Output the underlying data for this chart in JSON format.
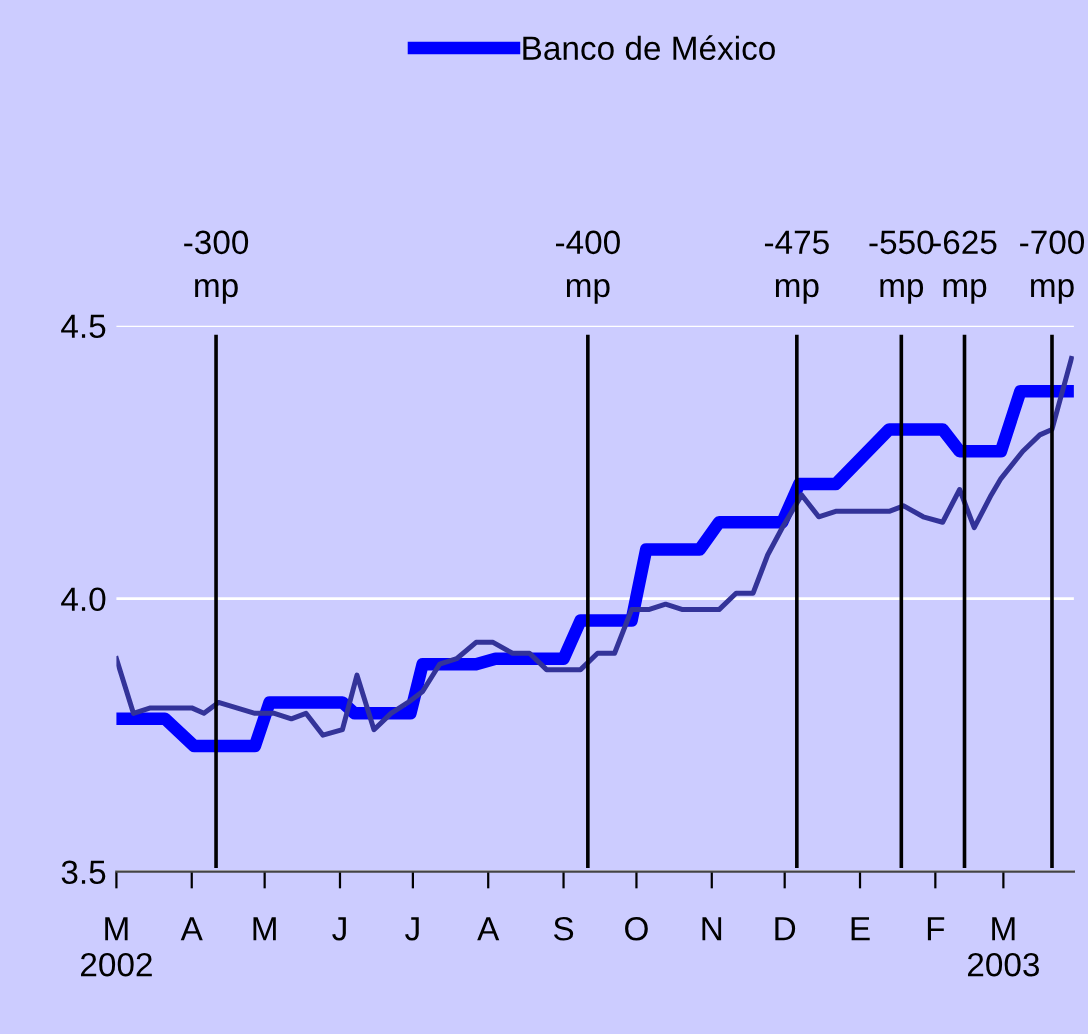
{
  "chart_data": {
    "type": "line",
    "legend": "top",
    "grid": "y",
    "line_style": "solid",
    "marker": "none",
    "series": [
      {
        "name": "Banco de México",
        "color": "#0000ff",
        "x": [
          "2002-03-01",
          "2002-03-21",
          "2002-04-02",
          "2002-04-27",
          "2002-05-03",
          "2002-06-02",
          "2002-06-07",
          "2002-06-30",
          "2002-07-05",
          "2002-07-27",
          "2002-08-04",
          "2002-09-01",
          "2002-09-08",
          "2002-09-29",
          "2002-10-05",
          "2002-10-27",
          "2002-11-04",
          "2002-11-30",
          "2002-12-07",
          "2002-12-22",
          "2003-01-13",
          "2003-02-04",
          "2003-02-11",
          "2003-02-28",
          "2003-03-08",
          "2003-03-29"
        ],
        "values": [
          3.78,
          3.78,
          3.73,
          3.73,
          3.81,
          3.81,
          3.79,
          3.79,
          3.88,
          3.88,
          3.89,
          3.89,
          3.96,
          3.96,
          4.09,
          4.09,
          4.14,
          4.14,
          4.21,
          4.21,
          4.31,
          4.31,
          4.27,
          4.27,
          4.38,
          4.38
        ]
      },
      {
        "color": "#333399",
        "x": [
          "2002-03-01",
          "2002-03-08",
          "2002-03-15",
          "2002-04-01",
          "2002-04-06",
          "2002-04-12",
          "2002-04-27",
          "2002-05-05",
          "2002-05-12",
          "2002-05-18",
          "2002-05-25",
          "2002-06-02",
          "2002-06-08",
          "2002-06-15",
          "2002-06-22",
          "2002-06-29",
          "2002-07-05",
          "2002-07-12",
          "2002-07-19",
          "2002-07-27",
          "2002-08-03",
          "2002-08-11",
          "2002-08-18",
          "2002-08-25",
          "2002-09-08",
          "2002-09-15",
          "2002-09-22",
          "2002-09-29",
          "2002-10-06",
          "2002-10-13",
          "2002-10-20",
          "2002-11-04",
          "2002-11-11",
          "2002-11-18",
          "2002-11-24",
          "2002-11-30",
          "2002-12-08",
          "2002-12-15",
          "2002-12-22",
          "2003-01-13",
          "2003-01-19",
          "2003-01-27",
          "2003-02-04",
          "2003-02-11",
          "2003-02-17",
          "2003-02-24",
          "2003-02-28",
          "2003-03-09",
          "2003-03-16",
          "2003-03-21",
          "2003-03-29"
        ],
        "values": [
          3.89,
          3.79,
          3.8,
          3.8,
          3.79,
          3.81,
          3.79,
          3.79,
          3.78,
          3.79,
          3.75,
          3.76,
          3.86,
          3.76,
          3.79,
          3.81,
          3.83,
          3.88,
          3.89,
          3.92,
          3.92,
          3.9,
          3.9,
          3.87,
          3.87,
          3.9,
          3.9,
          3.98,
          3.98,
          3.99,
          3.98,
          3.98,
          4.01,
          4.01,
          4.08,
          4.13,
          4.19,
          4.15,
          4.16,
          4.16,
          4.17,
          4.15,
          4.14,
          4.2,
          4.13,
          4.19,
          4.22,
          4.27,
          4.3,
          4.31,
          4.44
        ]
      }
    ],
    "xlim": [
      "2002-03-01",
      "2003-03-30"
    ],
    "xticks": [
      {
        "value": "2002-03-01",
        "label": "M\n2002"
      },
      {
        "value": "2002-04-01",
        "label": "A"
      },
      {
        "value": "2002-05-01",
        "label": "M"
      },
      {
        "value": "2002-06-01",
        "label": "J"
      },
      {
        "value": "2002-07-01",
        "label": "J"
      },
      {
        "value": "2002-08-01",
        "label": "A"
      },
      {
        "value": "2002-09-01",
        "label": "S"
      },
      {
        "value": "2002-10-01",
        "label": "O"
      },
      {
        "value": "2002-11-01",
        "label": "N"
      },
      {
        "value": "2002-12-01",
        "label": "D"
      },
      {
        "value": "2003-01-01",
        "label": "E"
      },
      {
        "value": "2003-02-01",
        "label": "F"
      },
      {
        "value": "2003-03-01",
        "label": "M\n2003"
      }
    ],
    "ylim": [
      3.5,
      4.5
    ],
    "yticks": [
      3.5,
      {
        "value": 4,
        "label": "4.0"
      },
      4.5
    ],
    "ref_lines": [
      {
        "axis": "x",
        "value": "2002-04-11",
        "label": "-300\nmp",
        "color": "#000000"
      },
      {
        "axis": "x",
        "value": "2002-09-11",
        "label": "-400\nmp",
        "color": "#000000"
      },
      {
        "axis": "x",
        "value": "2002-12-06",
        "label": "-475\nmp",
        "color": "#000000"
      },
      {
        "axis": "x",
        "value": "2003-01-18",
        "label": "-550\nmp",
        "color": "#000000"
      },
      {
        "axis": "x",
        "value": "2003-02-13",
        "label": "-625\nmp",
        "color": "#000000"
      },
      {
        "axis": "x",
        "value": "2003-03-21",
        "label": "-700\nmp",
        "color": "#000000"
      }
    ]
  }
}
